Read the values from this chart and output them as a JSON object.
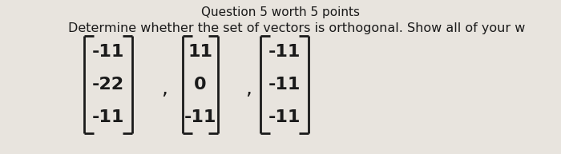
{
  "background_color": "#e8e4de",
  "title_text": "Determine whether the set of vectors is orthogonal. Show all of your w",
  "title_fontsize": 11.5,
  "title_color": "#1a1a1a",
  "vectors": [
    [
      "-11",
      "-22",
      "-11"
    ],
    [
      "11",
      "0",
      "-11"
    ],
    [
      "-11",
      "-11",
      "-11"
    ]
  ],
  "bracket_color": "#1a1a1a",
  "number_color": "#1a1a1a",
  "number_fontsize": 16,
  "header_color": "#1a1a1a",
  "header_fontsize": 11,
  "header_text": "Question 5 worth 5 points"
}
